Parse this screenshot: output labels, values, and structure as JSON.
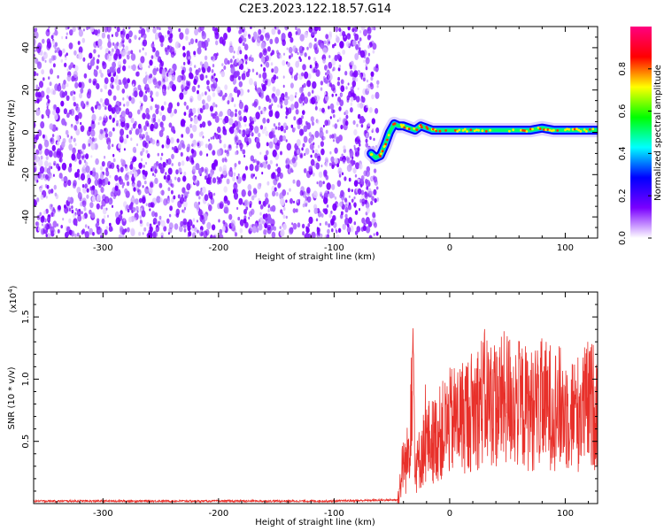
{
  "title": "C2E3.2023.122.18.57.G14",
  "chart_data": [
    {
      "type": "heatmap",
      "title": "C2E3.2023.122.18.57.G14",
      "xlabel": "Height of straight line (km)",
      "ylabel": "Frequency (Hz)",
      "xlim": [
        -360,
        128
      ],
      "ylim": [
        -50,
        50
      ],
      "xticks": [
        -300,
        -200,
        -100,
        0,
        100
      ],
      "yticks": [
        -40,
        -20,
        0,
        20,
        40
      ],
      "grid": false,
      "noise_region_x": [
        -360,
        -62
      ],
      "signal_track": {
        "name": "",
        "x": [
          -68,
          -64,
          -60,
          -56,
          -52,
          -48,
          -44,
          -40,
          -35,
          -30,
          -25,
          -20,
          -15,
          -10,
          0,
          10,
          20,
          30,
          40,
          50,
          60,
          70,
          80,
          90,
          100,
          110,
          120,
          128
        ],
        "y": [
          -10,
          -12,
          -11,
          -6,
          0,
          4,
          3,
          3,
          2,
          1,
          3,
          2,
          1,
          1,
          1,
          1,
          1,
          1,
          1,
          1,
          1,
          1,
          2,
          1,
          1,
          1,
          1,
          1
        ]
      },
      "colorbar": {
        "label": "Normalized spectral amplitude",
        "range": [
          0,
          1
        ],
        "ticks": [
          0.0,
          0.2,
          0.4,
          0.6,
          0.8
        ],
        "colors": [
          "#ffffff",
          "#7a00ff",
          "#0000ff",
          "#00ffff",
          "#00ff00",
          "#ffff00",
          "#ff0000",
          "#ff0080"
        ]
      }
    },
    {
      "type": "line",
      "xlabel": "Height of straight line (km)",
      "ylabel": "SNR (10 * v/v)",
      "scale_label": "(x10",
      "scale_exponent": "4",
      "scale_suffix": ")",
      "xlim": [
        -360,
        128
      ],
      "ylim": [
        0,
        1.7
      ],
      "xticks": [
        -300,
        -200,
        -100,
        0,
        100
      ],
      "yticks": [
        0.5,
        1.0,
        1.5
      ],
      "ytick_labels": [
        "0.5",
        "1.0",
        "1.5"
      ],
      "grid": false,
      "line_color": "#e8302a",
      "series": [
        {
          "name": "",
          "x": [
            -360,
            -300,
            -200,
            -100,
            -45,
            -42,
            -40,
            -38,
            -35,
            -32,
            -30,
            -28,
            -25,
            -22,
            -20,
            -15,
            -10,
            -5,
            0,
            10,
            20,
            30,
            40,
            50,
            60,
            70,
            80,
            90,
            100,
            110,
            120,
            128
          ],
          "y": [
            0.02,
            0.02,
            0.02,
            0.02,
            0.03,
            0.2,
            0.35,
            0.3,
            0.45,
            1.4,
            0.35,
            0.3,
            0.4,
            0.45,
            0.5,
            0.5,
            0.55,
            0.6,
            0.65,
            0.7,
            0.75,
            0.85,
            0.8,
            0.85,
            0.8,
            0.75,
            0.8,
            0.78,
            0.75,
            0.72,
            0.8,
            0.78
          ]
        }
      ]
    }
  ]
}
